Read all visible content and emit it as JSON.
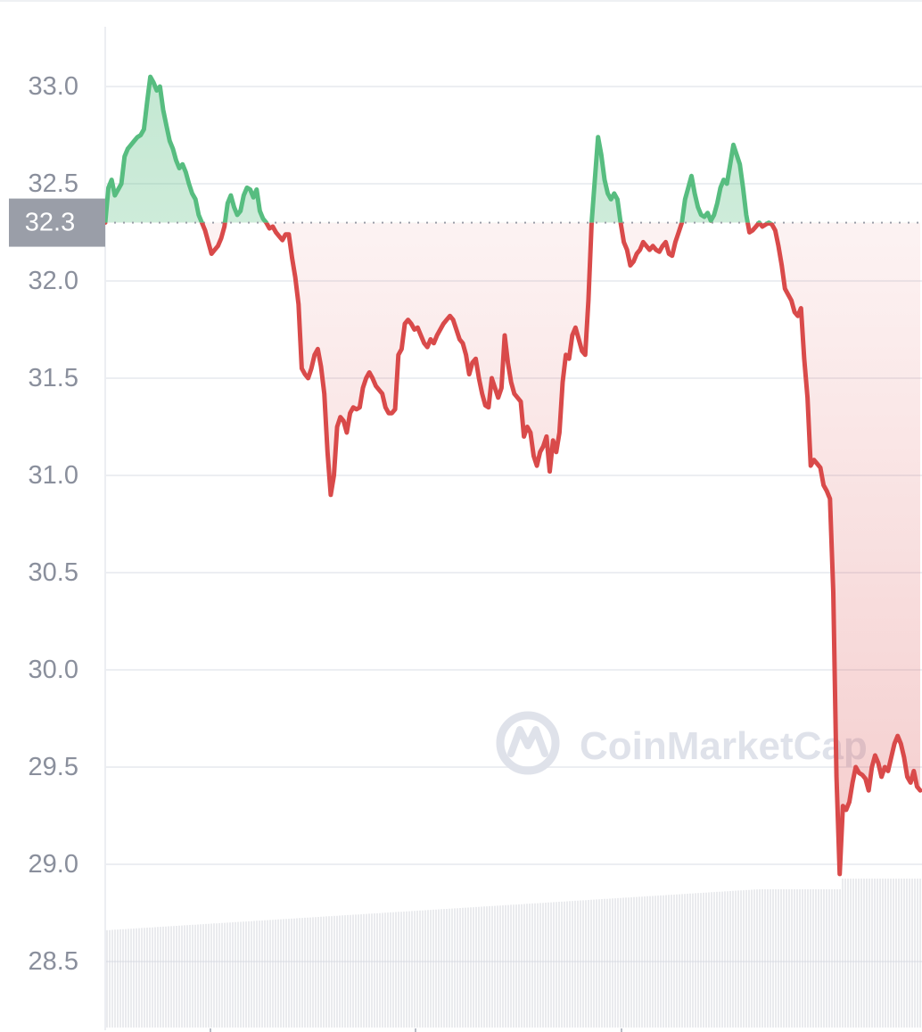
{
  "brand": {
    "watermark": "CoinMarketCap",
    "logo_icon": "coinmarketcap-logo-icon"
  },
  "colors": {
    "up": "#57bd80",
    "down": "#d94a4a",
    "grid": "#eceef2",
    "axis_text": "#8a8f9c",
    "badge_bg": "#9a9ea8",
    "volume": "#d4d7dd"
  },
  "chart_data": {
    "type": "line",
    "title": "",
    "xlabel": "",
    "ylabel": "",
    "ylim": [
      28.2,
      33.4
    ],
    "y_ticks": [
      "28.5",
      "29.0",
      "29.5",
      "30.0",
      "30.5",
      "31.0",
      "31.5",
      "32.0",
      "32.5",
      "33.0"
    ],
    "reference_line": {
      "value": 32.3,
      "label": "32.3",
      "style": "dotted"
    },
    "grid": true,
    "fill_below_reference": "red-gradient",
    "fill_above_reference": "green-gradient",
    "series": [
      {
        "values": [
          32.3,
          32.48,
          32.52,
          32.44,
          32.47,
          32.5,
          32.64,
          32.68,
          32.7,
          32.72,
          32.74,
          32.75,
          32.78,
          32.92,
          33.05,
          33.02,
          32.98,
          33.0,
          32.88,
          32.8,
          32.72,
          32.68,
          32.62,
          32.58,
          32.6,
          32.56,
          32.5,
          32.45,
          32.42,
          32.34,
          32.3,
          32.26,
          32.2,
          32.14,
          32.16,
          32.18,
          32.22,
          32.28,
          32.4,
          32.44,
          32.38,
          32.34,
          32.36,
          32.44,
          32.48,
          32.47,
          32.43,
          32.47,
          32.36,
          32.32,
          32.3,
          32.27,
          32.28,
          32.25,
          32.23,
          32.21,
          32.24,
          32.24,
          32.12,
          32.02,
          31.88,
          31.55,
          31.52,
          31.5,
          31.55,
          31.62,
          31.65,
          31.56,
          31.42,
          31.12,
          30.9,
          31.0,
          31.25,
          31.3,
          31.28,
          31.22,
          31.32,
          31.35,
          31.34,
          31.35,
          31.45,
          31.5,
          31.53,
          31.5,
          31.46,
          31.44,
          31.42,
          31.35,
          31.32,
          31.32,
          31.34,
          31.62,
          31.65,
          31.78,
          31.8,
          31.78,
          31.75,
          31.76,
          31.72,
          31.68,
          31.66,
          31.7,
          31.68,
          31.72,
          31.75,
          31.78,
          31.8,
          31.82,
          31.8,
          31.75,
          31.7,
          31.68,
          31.62,
          31.52,
          31.58,
          31.6,
          31.5,
          31.42,
          31.36,
          31.35,
          31.5,
          31.45,
          31.4,
          31.45,
          31.72,
          31.58,
          31.48,
          31.42,
          31.4,
          31.38,
          31.2,
          31.25,
          31.22,
          31.1,
          31.05,
          31.12,
          31.15,
          31.2,
          31.02,
          31.18,
          31.12,
          31.22,
          31.48,
          31.62,
          31.6,
          31.72,
          31.76,
          31.7,
          31.64,
          31.62,
          31.9,
          32.3,
          32.52,
          32.74,
          32.65,
          32.52,
          32.45,
          32.42,
          32.45,
          32.42,
          32.3,
          32.2,
          32.16,
          32.08,
          32.1,
          32.14,
          32.16,
          32.2,
          32.18,
          32.16,
          32.18,
          32.16,
          32.15,
          32.18,
          32.2,
          32.14,
          32.13,
          32.2,
          32.25,
          32.3,
          32.42,
          32.48,
          32.54,
          32.45,
          32.38,
          32.34,
          32.33,
          32.35,
          32.31,
          32.34,
          32.4,
          32.48,
          32.52,
          32.5,
          32.6,
          32.7,
          32.65,
          32.6,
          32.48,
          32.34,
          32.25,
          32.26,
          32.28,
          32.3,
          32.28,
          32.29,
          32.3,
          32.29,
          32.26,
          32.18,
          32.08,
          31.96,
          31.93,
          31.9,
          31.84,
          31.82,
          31.86,
          31.6,
          31.4,
          31.05,
          31.08,
          31.06,
          31.04,
          30.95,
          30.92,
          30.88,
          30.4,
          29.45,
          28.95,
          29.3,
          29.28,
          29.32,
          29.42,
          29.5,
          29.47,
          29.46,
          29.44,
          29.38,
          29.5,
          29.56,
          29.52,
          29.45,
          29.5,
          29.48,
          29.55,
          29.62,
          29.66,
          29.62,
          29.55,
          29.45,
          29.42,
          29.48,
          29.4,
          29.38
        ]
      }
    ]
  }
}
